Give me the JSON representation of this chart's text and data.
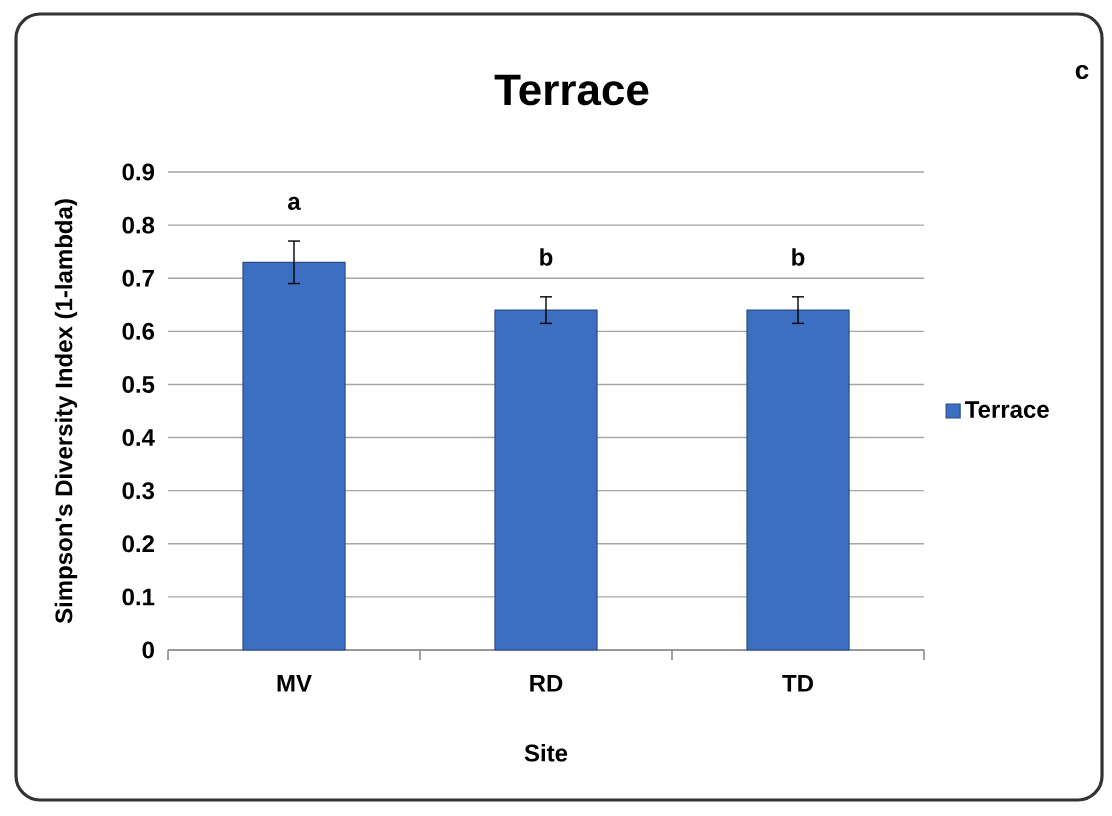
{
  "chart_data": {
    "type": "bar",
    "title": "Terrace",
    "xlabel": "Site",
    "ylabel": "Simpson's Diversity Index (1-lambda)",
    "categories": [
      "MV",
      "RD",
      "TD"
    ],
    "series": [
      {
        "name": "Terrace",
        "color": "#3c6fc2",
        "values": [
          0.73,
          0.64,
          0.64
        ],
        "errors": [
          0.04,
          0.025,
          0.025
        ]
      }
    ],
    "ylim": [
      0,
      0.9
    ],
    "yticks": [
      0,
      0.1,
      0.2,
      0.3,
      0.4,
      0.5,
      0.6,
      0.7,
      0.8,
      0.9
    ],
    "grid": "y",
    "legend": "right",
    "annotations": [
      "a",
      "b",
      "b",
      "c"
    ]
  }
}
